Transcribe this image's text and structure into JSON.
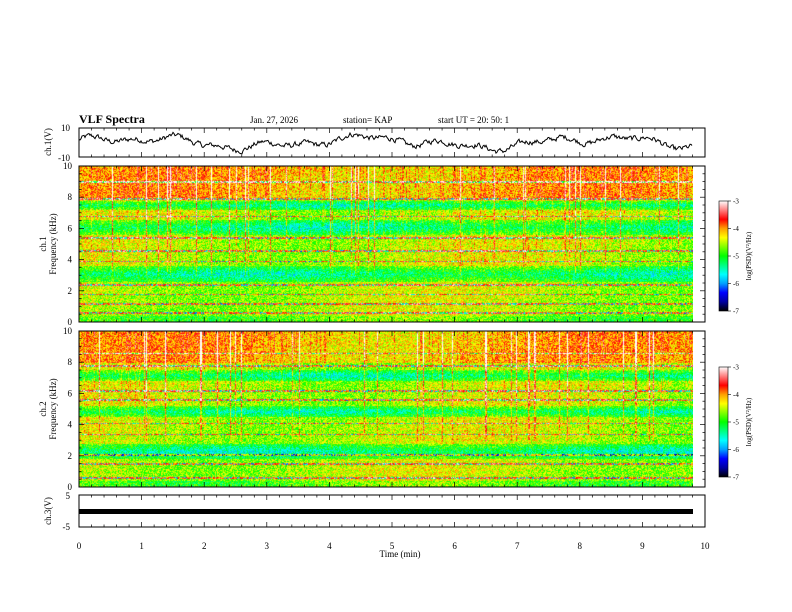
{
  "header": {
    "title": "VLF Spectra",
    "date": "Jan. 27, 2026",
    "station": "station= KAP",
    "start": "start UT =  20: 50: 1"
  },
  "chart_data": {
    "type": "heatmap",
    "time_axis": {
      "label": "Time (min)",
      "range": [
        0,
        10
      ],
      "ticks": [
        "0",
        "1",
        "2",
        "3",
        "4",
        "5",
        "6",
        "7",
        "8",
        "9",
        "10"
      ]
    },
    "panels": [
      {
        "name": "ch.1(V)",
        "type": "line",
        "ylabel": "ch.1(V)",
        "ylim": [
          -10,
          10
        ],
        "ticks": [
          "10",
          "-10"
        ],
        "description_values": {
          "mean": 0,
          "amplitude_approx": 6
        },
        "data_end_min": 9.8
      },
      {
        "name": "ch.1 spectrogram",
        "type": "heatmap",
        "ylabel": "ch.1\nFrequency (kHz)",
        "ylim": [
          0,
          10
        ],
        "ticks": [
          "0",
          "2",
          "4",
          "6",
          "8",
          "10"
        ],
        "data_end_min": 9.8,
        "quiet_bands_khz": [
          [
            5.6,
            6.6
          ],
          [
            2.6,
            3.6
          ],
          [
            7.2,
            7.8
          ]
        ],
        "line_freqs_khz": [
          0.6,
          1.2,
          1.8,
          2.4,
          3.9,
          4.6,
          5.4,
          6.8,
          7.9,
          9.0
        ]
      },
      {
        "name": "ch.2 spectrogram",
        "type": "heatmap",
        "ylabel": "ch.2\nFrequency (kHz)",
        "ylim": [
          0,
          10
        ],
        "ticks": [
          "0",
          "2",
          "4",
          "6",
          "8",
          "10"
        ],
        "data_end_min": 9.8,
        "quiet_bands_khz": [
          [
            1.8,
            2.8
          ],
          [
            4.5,
            5.2
          ],
          [
            6.8,
            7.5
          ]
        ],
        "line_freqs_khz": [
          0.6,
          1.5,
          2.1,
          3.4,
          4.1,
          5.6,
          6.2,
          7.8,
          8.6
        ]
      },
      {
        "name": "ch.3(V)",
        "type": "line",
        "ylabel": "ch.3(V)",
        "ylim": [
          -5,
          5
        ],
        "ticks": [
          "5",
          "-5"
        ],
        "constant_value": 0,
        "data_end_min": 9.8
      }
    ],
    "colorbar": {
      "label": "log(PSD)(V²/Hz)",
      "range": [
        -7,
        -3
      ],
      "ticks": [
        "-3",
        "-4",
        "-5",
        "-6",
        "-7"
      ],
      "colormap": [
        "#000000",
        "#0000a0",
        "#0000ff",
        "#00a0ff",
        "#00ffff",
        "#00ff80",
        "#00ff00",
        "#80ff00",
        "#ffff00",
        "#ffa000",
        "#ff0000",
        "#ff8080",
        "#ffffff"
      ]
    }
  }
}
